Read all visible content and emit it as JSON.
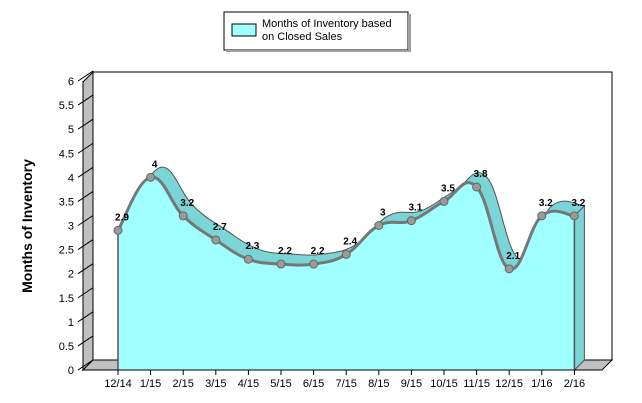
{
  "chart_data": {
    "type": "area",
    "categories": [
      "12/14",
      "1/15",
      "2/15",
      "3/15",
      "4/15",
      "5/15",
      "6/15",
      "7/15",
      "8/15",
      "9/15",
      "10/15",
      "11/15",
      "12/15",
      "1/16",
      "2/16"
    ],
    "series": [
      {
        "name": "Months of Inventory based on Closed Sales",
        "values": [
          2.9,
          4,
          3.2,
          2.7,
          2.3,
          2.2,
          2.2,
          2.4,
          3,
          3.1,
          3.5,
          3.8,
          2.1,
          3.2,
          3.2
        ],
        "data_labels": [
          "2.9",
          "4",
          "3.2",
          "2.7",
          "2.3",
          "2.2",
          "2.2",
          "2.4",
          "3",
          "3.1",
          "3.5",
          "3.8",
          "2.1",
          "3.2",
          "3.2"
        ]
      }
    ],
    "title": "",
    "xlabel": "",
    "ylabel": "Months of Inventory",
    "ylim": [
      0,
      6
    ],
    "yticks": [
      "0",
      "0.5",
      "1",
      "1.5",
      "2",
      "2.5",
      "3",
      "3.5",
      "4",
      "4.5",
      "5",
      "5.5",
      "6"
    ],
    "grid": false,
    "legend_position": "top-center",
    "colors": {
      "fill": "#a0ffff",
      "fill_shadow": "#7ad6d6",
      "line": "#777777",
      "marker": "#9a9a9a",
      "wall": "#c0c0c0"
    }
  }
}
